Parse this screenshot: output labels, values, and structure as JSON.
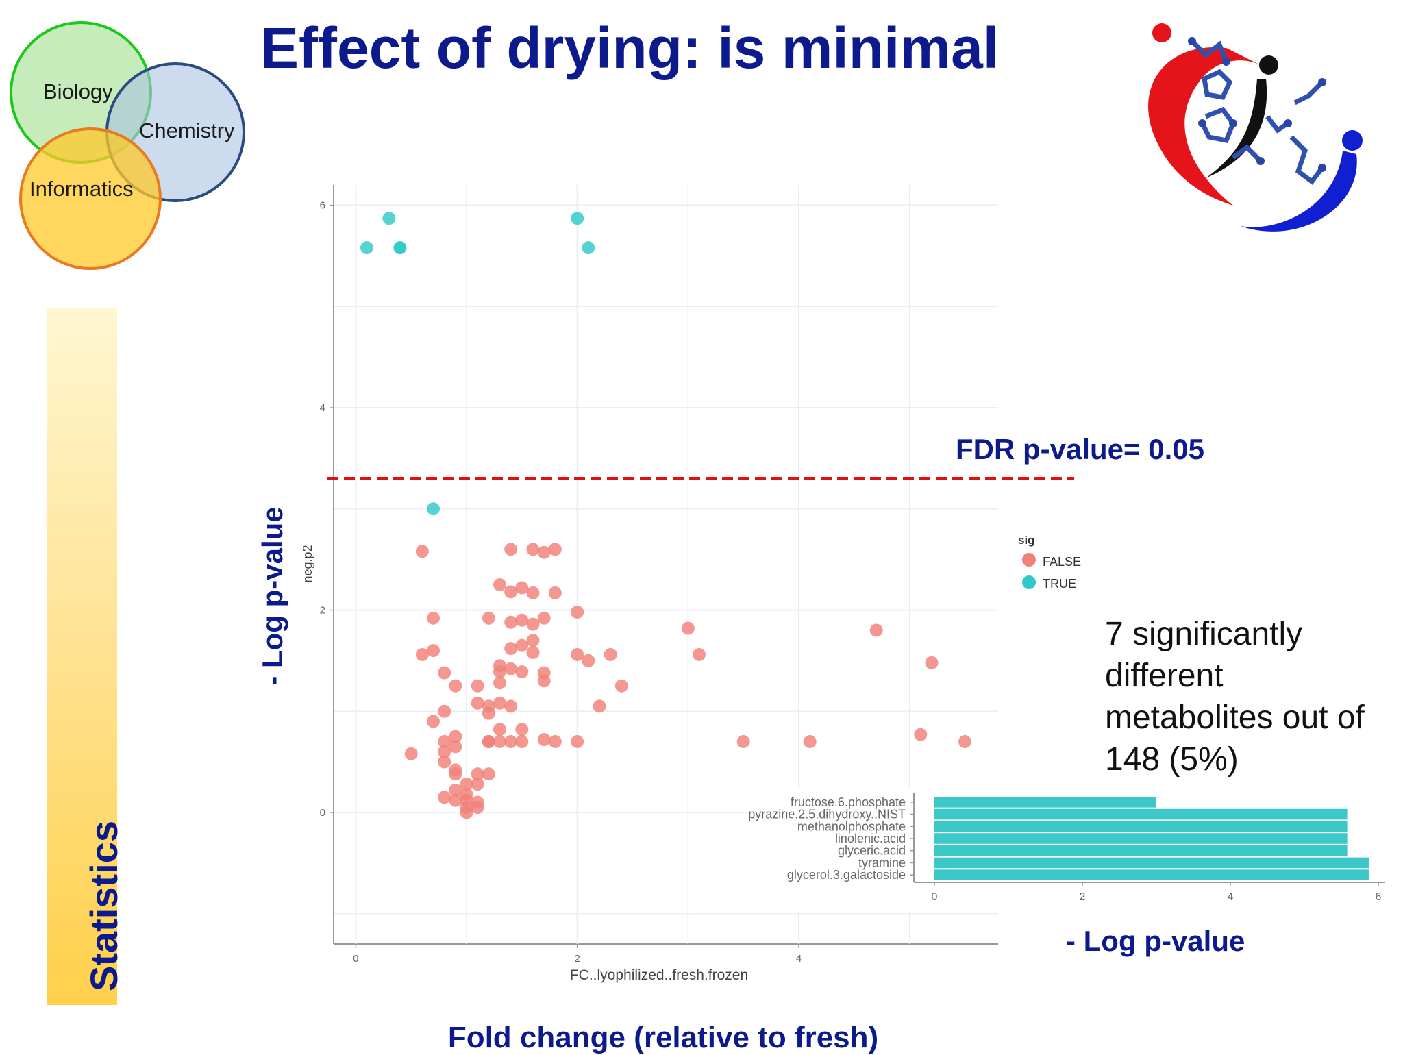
{
  "slide": {
    "title": "Effect of drying: is minimal",
    "venn": {
      "labels": [
        "Biology",
        "Chemistry",
        "Informatics"
      ]
    },
    "sidebar_label": "Statistics",
    "y_axis_caption": "- Log p-value",
    "x_axis_caption": "Fold change (relative to fresh)",
    "threshold_label": "FDR p-value= 0.05",
    "bar_axis_caption": "- Log p-value",
    "summary": "7 significantly different metabolites out of 148 (5%)",
    "colors": {
      "title": "#0d1a8c",
      "threshold": "#e01010",
      "sig_false": "#f08078",
      "sig_true": "#30c8c8",
      "bar": "#3cc8c8"
    }
  },
  "chart_data": [
    {
      "type": "scatter",
      "xlabel": "FC..lyophilized..fresh.frozen",
      "ylabel": "neg.p2",
      "xlim": [
        -0.2,
        5.8
      ],
      "ylim": [
        -1.3,
        6.2
      ],
      "x_ticks": [
        "0",
        "2",
        "4"
      ],
      "y_ticks": [
        "0",
        "2",
        "4",
        "6"
      ],
      "grid": true,
      "legend": {
        "title": "sig",
        "position": "right",
        "entries": [
          "FALSE",
          "TRUE"
        ]
      },
      "threshold_y": 3.3,
      "series": [
        {
          "name": "TRUE",
          "color": "#30c8c8",
          "points": [
            [
              0.1,
              5.58
            ],
            [
              0.3,
              5.87
            ],
            [
              0.4,
              5.58
            ],
            [
              0.4,
              5.58
            ],
            [
              2.0,
              5.87
            ],
            [
              2.1,
              5.58
            ],
            [
              0.7,
              3.0
            ]
          ]
        },
        {
          "name": "FALSE",
          "color": "#f08078",
          "points": [
            [
              0.6,
              2.58
            ],
            [
              0.7,
              1.92
            ],
            [
              0.6,
              1.56
            ],
            [
              0.7,
              1.6
            ],
            [
              0.8,
              1.38
            ],
            [
              0.9,
              1.25
            ],
            [
              0.8,
              1.0
            ],
            [
              0.7,
              0.9
            ],
            [
              0.9,
              0.75
            ],
            [
              0.8,
              0.7
            ],
            [
              0.9,
              0.65
            ],
            [
              0.8,
              0.6
            ],
            [
              0.8,
              0.5
            ],
            [
              0.9,
              0.42
            ],
            [
              0.5,
              0.58
            ],
            [
              0.8,
              0.15
            ],
            [
              0.9,
              0.12
            ],
            [
              0.9,
              0.38
            ],
            [
              1.0,
              0.12
            ],
            [
              1.0,
              0.05
            ],
            [
              1.0,
              0.0
            ],
            [
              1.0,
              0.18
            ],
            [
              1.1,
              0.1
            ],
            [
              1.1,
              0.28
            ],
            [
              1.1,
              0.38
            ],
            [
              1.2,
              0.38
            ],
            [
              1.1,
              0.05
            ],
            [
              1.0,
              0.28
            ],
            [
              0.9,
              0.22
            ],
            [
              1.1,
              1.25
            ],
            [
              1.1,
              1.08
            ],
            [
              1.2,
              0.98
            ],
            [
              1.2,
              0.7
            ],
            [
              1.3,
              0.7
            ],
            [
              1.3,
              0.82
            ],
            [
              1.2,
              1.05
            ],
            [
              1.3,
              1.08
            ],
            [
              1.4,
              1.05
            ],
            [
              1.3,
              1.28
            ],
            [
              1.3,
              1.45
            ],
            [
              1.3,
              1.39
            ],
            [
              1.4,
              1.42
            ],
            [
              1.5,
              1.39
            ],
            [
              1.4,
              1.62
            ],
            [
              1.5,
              1.65
            ],
            [
              1.6,
              1.7
            ],
            [
              1.6,
              1.58
            ],
            [
              1.7,
              1.38
            ],
            [
              1.7,
              1.3
            ],
            [
              1.4,
              1.88
            ],
            [
              1.5,
              1.9
            ],
            [
              1.6,
              1.86
            ],
            [
              1.7,
              1.92
            ],
            [
              1.2,
              1.92
            ],
            [
              1.3,
              2.25
            ],
            [
              1.4,
              2.18
            ],
            [
              1.5,
              2.22
            ],
            [
              1.6,
              2.17
            ],
            [
              1.8,
              2.17
            ],
            [
              1.4,
              2.6
            ],
            [
              1.6,
              2.6
            ],
            [
              1.7,
              2.57
            ],
            [
              1.8,
              2.6
            ],
            [
              1.4,
              0.7
            ],
            [
              1.5,
              0.7
            ],
            [
              1.5,
              0.82
            ],
            [
              1.7,
              0.72
            ],
            [
              1.8,
              0.7
            ],
            [
              2.0,
              0.7
            ],
            [
              2.0,
              1.56
            ],
            [
              2.1,
              1.5
            ],
            [
              2.0,
              1.98
            ],
            [
              2.2,
              1.05
            ],
            [
              2.3,
              1.56
            ],
            [
              2.4,
              1.25
            ],
            [
              3.0,
              1.82
            ],
            [
              3.1,
              1.56
            ],
            [
              3.5,
              0.7
            ],
            [
              4.1,
              0.7
            ],
            [
              4.7,
              1.8
            ],
            [
              5.1,
              0.77
            ],
            [
              5.2,
              1.48
            ],
            [
              5.5,
              0.7
            ],
            [
              1.2,
              0.7
            ]
          ]
        }
      ]
    },
    {
      "type": "bar",
      "orientation": "horizontal",
      "categories": [
        "glycerol.3.galactoside",
        "tyramine",
        "glyceric.acid",
        "linolenic.acid",
        "methanolphosphate",
        "pyrazine.2.5.dihydroxy..NIST",
        "fructose.6.phosphate"
      ],
      "values": [
        5.87,
        5.87,
        5.58,
        5.58,
        5.58,
        5.58,
        3.0
      ],
      "xlim": [
        0,
        6
      ],
      "x_ticks": [
        "0",
        "2",
        "4",
        "6"
      ],
      "color": "#3cc8c8"
    }
  ]
}
